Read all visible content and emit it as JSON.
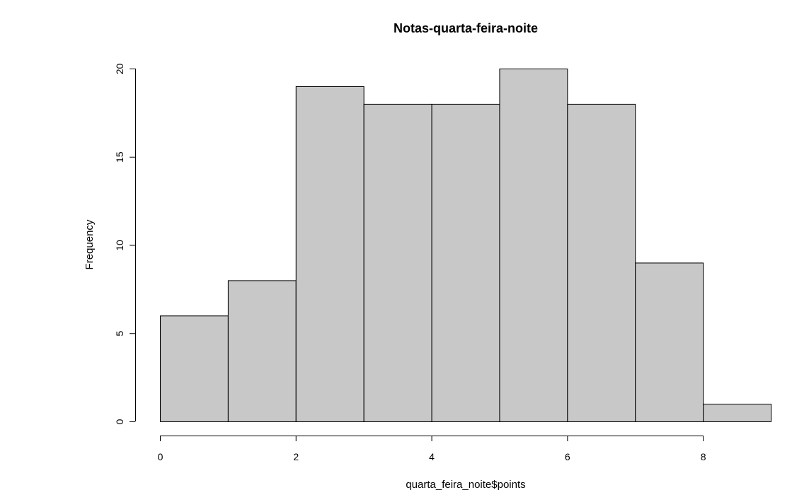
{
  "chart_data": {
    "type": "bar",
    "title": "Notas-quarta-feira-noite",
    "xlabel": "quarta_feira_noite$points",
    "ylabel": "Frequency",
    "bins": [
      {
        "from": 0,
        "to": 1,
        "count": 6
      },
      {
        "from": 1,
        "to": 2,
        "count": 8
      },
      {
        "from": 2,
        "to": 3,
        "count": 19
      },
      {
        "from": 3,
        "to": 4,
        "count": 18
      },
      {
        "from": 4,
        "to": 5,
        "count": 18
      },
      {
        "from": 5,
        "to": 6,
        "count": 20
      },
      {
        "from": 6,
        "to": 7,
        "count": 18
      },
      {
        "from": 7,
        "to": 8,
        "count": 9
      },
      {
        "from": 8,
        "to": 9,
        "count": 1
      }
    ],
    "xlim": [
      0,
      9
    ],
    "ylim": [
      0,
      20
    ],
    "xticks": [
      0,
      2,
      4,
      6,
      8
    ],
    "yticks": [
      0,
      5,
      10,
      15,
      20
    ],
    "xtick_labels": [
      "0",
      "2",
      "4",
      "6",
      "8"
    ],
    "ytick_labels": [
      "0",
      "5",
      "10",
      "15",
      "20"
    ],
    "bar_color": "#c8c8c8",
    "edge_color": "#000000",
    "grid": false
  }
}
